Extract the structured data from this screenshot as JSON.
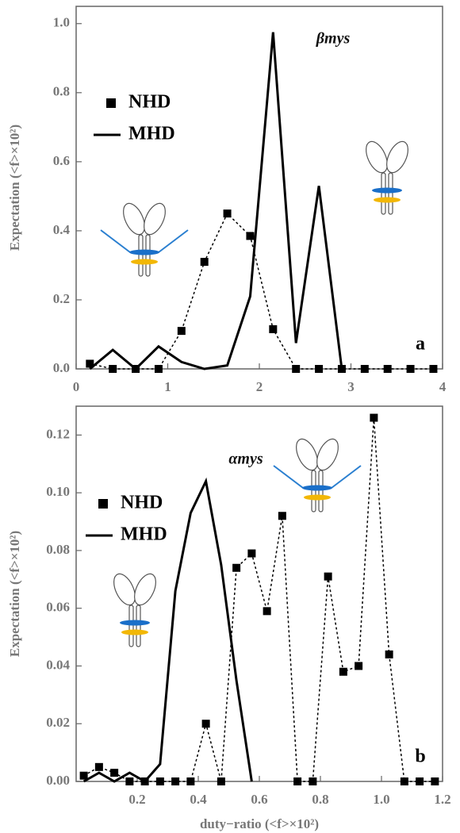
{
  "chart_data": [
    {
      "type": "line",
      "title": "βmys",
      "panel_label": "a",
      "ylabel": "Expectation (<f>×10²)",
      "xlim": [
        0,
        4
      ],
      "xticks": [
        0,
        1,
        2,
        3,
        4
      ],
      "ylim": [
        0,
        1.05
      ],
      "yticks": [
        {
          "value": 0,
          "label": "0.0"
        },
        0.2,
        0.4,
        0.6,
        0.8,
        {
          "value": 1,
          "label": "1.0"
        }
      ],
      "legend": "upper left",
      "series": [
        {
          "name": "NHD",
          "color": "#000000",
          "marker": "square",
          "linestyle": "dashed",
          "x": [
            0.15,
            0.4,
            0.65,
            0.9,
            1.15,
            1.4,
            1.65,
            1.9,
            2.15,
            2.4,
            2.65,
            2.9,
            3.15,
            3.4,
            3.65,
            3.9
          ],
          "values": [
            0.015,
            0,
            0,
            0,
            0.11,
            0.31,
            0.45,
            0.385,
            0.115,
            0,
            0,
            0,
            0,
            0,
            0,
            0
          ]
        },
        {
          "name": "MHD",
          "color": "#000000",
          "marker": "none",
          "linestyle": "solid",
          "x": [
            0.15,
            0.4,
            0.65,
            0.9,
            1.15,
            1.4,
            1.65,
            1.9,
            2.15,
            2.4,
            2.65,
            2.9
          ],
          "values": [
            0,
            0.055,
            0,
            0.065,
            0.02,
            0,
            0.01,
            0.21,
            0.975,
            0.075,
            0.53,
            0
          ]
        }
      ]
    },
    {
      "type": "line",
      "title": "αmys",
      "panel_label": "b",
      "ylabel": "Expectation (<f>×10²)",
      "xlabel": "duty−ratio (<f>×10²)",
      "xlim": [
        0,
        1.2
      ],
      "xticks": [
        0.2,
        0.4,
        0.6,
        0.8,
        {
          "value": 1,
          "label": "1.0"
        },
        1.2
      ],
      "ylim": [
        0,
        0.13
      ],
      "yticks": [
        {
          "value": 0,
          "label": "0.00"
        },
        0.02,
        0.04,
        0.06,
        0.08,
        {
          "value": 0.1,
          "label": "0.10"
        },
        0.12
      ],
      "legend": "upper left",
      "series": [
        {
          "name": "NHD",
          "color": "#000000",
          "marker": "square",
          "linestyle": "dashed",
          "x": [
            0.025,
            0.075,
            0.125,
            0.175,
            0.225,
            0.275,
            0.325,
            0.375,
            0.425,
            0.475,
            0.525,
            0.575,
            0.625,
            0.675,
            0.725,
            0.775,
            0.825,
            0.875,
            0.925,
            0.975,
            1.025,
            1.075,
            1.125,
            1.175
          ],
          "values": [
            0.002,
            0.005,
            0.003,
            0,
            0,
            0,
            0,
            0,
            0.02,
            0,
            0.074,
            0.079,
            0.059,
            0.092,
            0,
            0,
            0.071,
            0.038,
            0.04,
            0.126,
            0.044,
            0,
            0,
            0
          ]
        },
        {
          "name": "MHD",
          "color": "#000000",
          "marker": "none",
          "linestyle": "solid",
          "x": [
            0.025,
            0.075,
            0.125,
            0.175,
            0.225,
            0.275,
            0.325,
            0.375,
            0.425,
            0.475,
            0.525,
            0.575
          ],
          "values": [
            0,
            0.003,
            0,
            0.003,
            0,
            0.006,
            0.066,
            0.093,
            0.104,
            0.075,
            0.035,
            0
          ]
        }
      ]
    }
  ]
}
